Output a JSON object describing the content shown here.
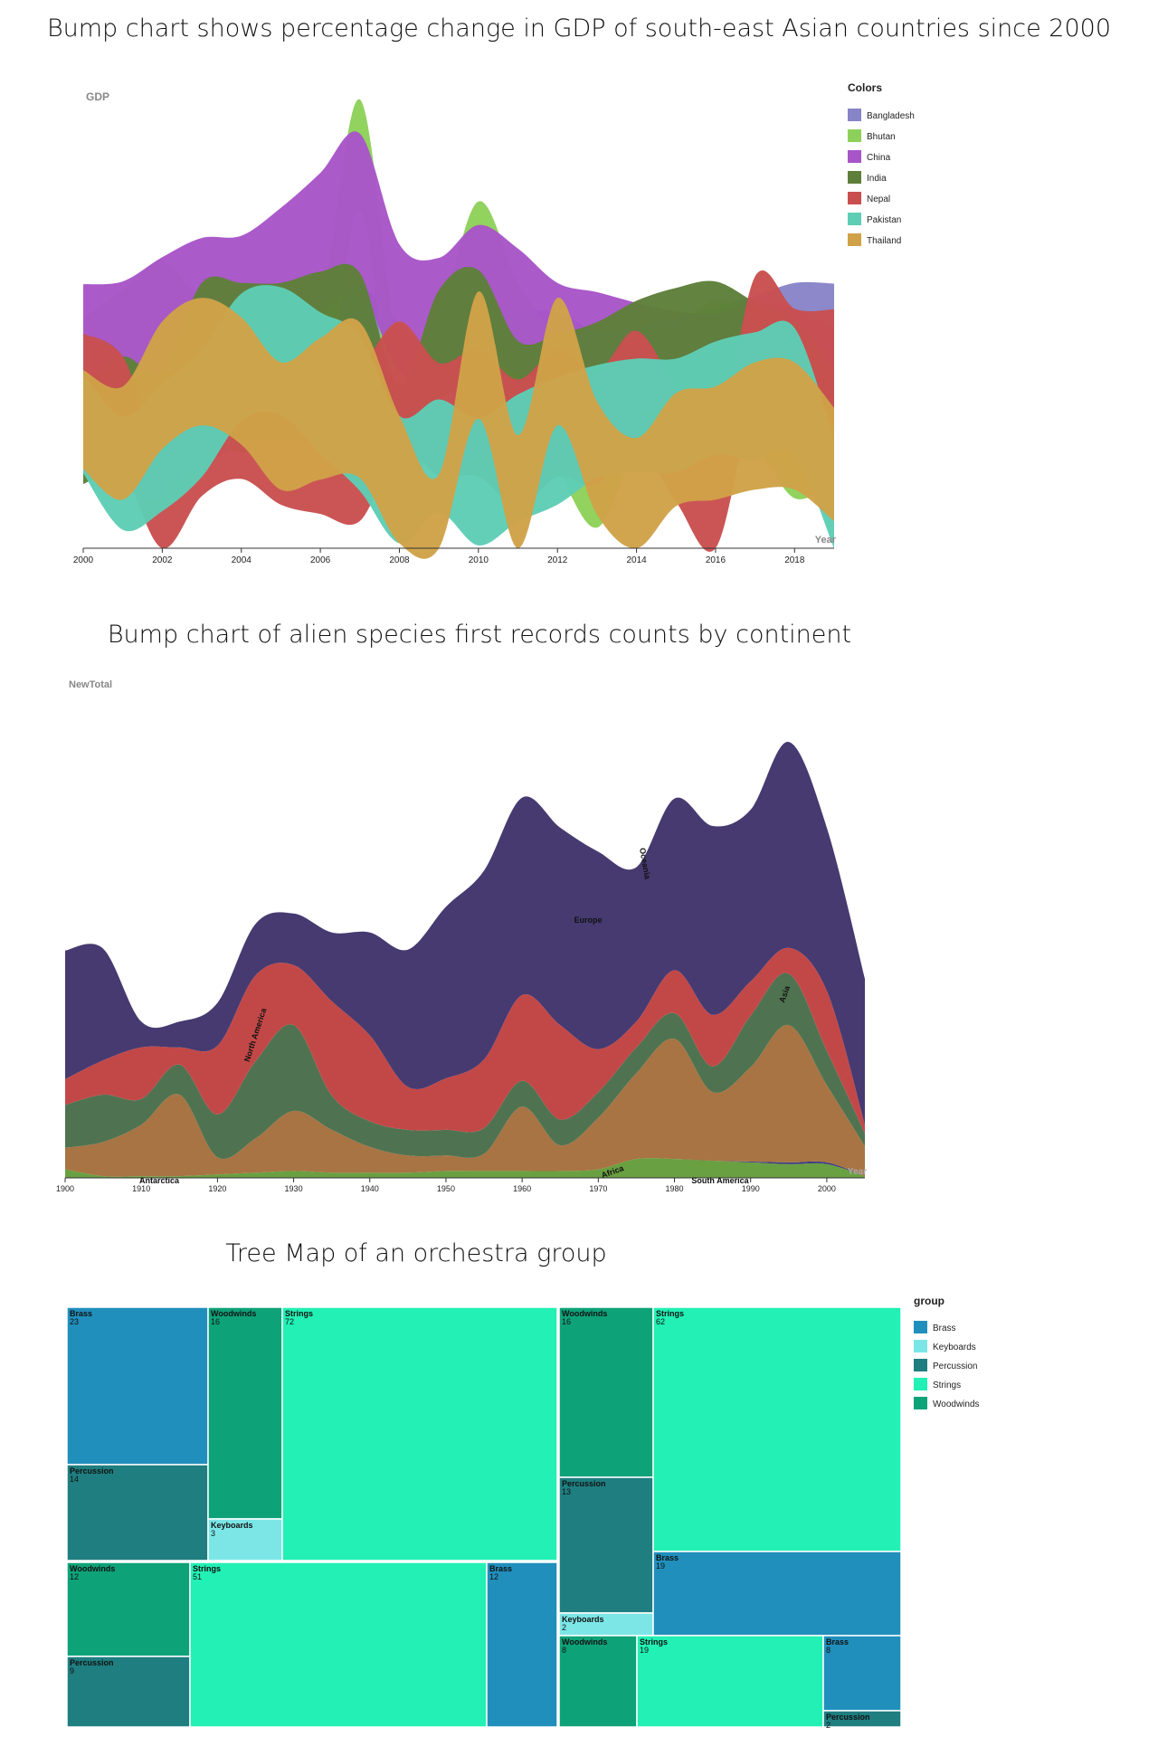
{
  "chart_data": [
    {
      "type": "area",
      "title": "Bump chart shows percentage change in GDP of south-east Asian countries since 2000",
      "ylabel": "GDP",
      "xlabel": "Year",
      "xlim": [
        2000,
        2019
      ],
      "x_ticks": [
        "2000",
        "2002",
        "2004",
        "2006",
        "2008",
        "2010",
        "2012",
        "2014",
        "2016",
        "2018"
      ],
      "legend_title": "Colors",
      "legend_position": "top-right",
      "grid": false,
      "x": [
        2000,
        2001,
        2002,
        2003,
        2004,
        2005,
        2006,
        2007,
        2008,
        2009,
        2010,
        2011,
        2012,
        2013,
        2014,
        2015,
        2016,
        2017,
        2018,
        2019
      ],
      "series": [
        {
          "name": "Bangladesh",
          "color": "#8884c8",
          "values": [
            6.0,
            5.3,
            4.4,
            5.3,
            6.3,
            6.5,
            6.7,
            7.1,
            6.0,
            5.0,
            5.6,
            6.5,
            6.5,
            6.0,
            6.1,
            6.6,
            7.1,
            7.3,
            7.9,
            8.2
          ]
        },
        {
          "name": "Bhutan",
          "color": "#8ed15a",
          "values": [
            6.9,
            7.9,
            8.9,
            7.0,
            5.9,
            7.1,
            6.8,
            17.9,
            4.8,
            6.7,
            11.7,
            7.9,
            5.1,
            2.1,
            5.7,
            6.2,
            7.4,
            6.3,
            3.8,
            4.3
          ]
        },
        {
          "name": "China",
          "color": "#a855c8",
          "values": [
            8.5,
            8.3,
            9.1,
            10.0,
            10.1,
            11.4,
            12.7,
            14.2,
            9.7,
            9.4,
            10.6,
            9.5,
            7.9,
            7.8,
            7.3,
            6.9,
            6.8,
            6.9,
            6.7,
            6.1
          ]
        },
        {
          "name": "India",
          "color": "#5e7f3a",
          "values": [
            3.8,
            4.8,
            3.8,
            7.9,
            7.9,
            7.9,
            8.1,
            7.7,
            3.1,
            7.9,
            8.5,
            5.2,
            5.5,
            6.4,
            7.4,
            8.0,
            8.3,
            7.0,
            6.1,
            4.2
          ]
        },
        {
          "name": "Nepal",
          "color": "#c94f4f",
          "values": [
            6.2,
            4.8,
            0.1,
            3.9,
            4.7,
            3.5,
            3.4,
            3.4,
            6.1,
            4.5,
            4.8,
            3.4,
            4.8,
            4.1,
            6.0,
            3.3,
            0.6,
            8.2,
            6.7,
            7.0
          ]
        },
        {
          "name": "Pakistan",
          "color": "#5ecdb5",
          "values": [
            4.3,
            2.0,
            3.2,
            4.8,
            7.4,
            7.7,
            6.2,
            4.8,
            1.7,
            2.8,
            1.6,
            2.7,
            3.5,
            4.4,
            4.7,
            4.7,
            5.5,
            5.6,
            5.8,
            1.0
          ]
        },
        {
          "name": "Thailand",
          "color": "#cfa248",
          "values": [
            4.5,
            3.4,
            6.1,
            7.2,
            6.3,
            4.2,
            5.0,
            5.4,
            1.7,
            -0.7,
            7.5,
            0.8,
            7.2,
            2.7,
            1.0,
            3.1,
            3.4,
            4.2,
            4.2,
            2.4
          ]
        }
      ]
    },
    {
      "type": "area",
      "title": "Bump chart of alien species first records counts by continent",
      "ylabel": "NewTotal",
      "xlabel": "Year",
      "xlim": [
        1900,
        2005
      ],
      "x_ticks": [
        "1900",
        "1910",
        "1920",
        "1930",
        "1940",
        "1950",
        "1960",
        "1970",
        "1980",
        "1990",
        "2000"
      ],
      "grid": false,
      "x": [
        1900,
        1905,
        1910,
        1915,
        1920,
        1925,
        1930,
        1935,
        1940,
        1945,
        1950,
        1955,
        1960,
        1965,
        1970,
        1975,
        1980,
        1985,
        1990,
        1995,
        2000,
        2005
      ],
      "series": [
        {
          "name": "Africa",
          "color": "#69a041",
          "values": [
            10,
            2,
            2,
            2,
            4,
            6,
            8,
            6,
            6,
            6,
            8,
            8,
            8,
            8,
            10,
            22,
            22,
            20,
            18,
            16,
            16,
            2
          ]
        },
        {
          "name": "Antarctica",
          "color": "#3b3b80",
          "values": [
            0,
            0,
            0,
            0,
            0,
            0,
            0,
            0,
            0,
            0,
            0,
            0,
            0,
            0,
            0,
            0,
            0,
            0,
            0,
            0,
            0,
            0
          ]
        },
        {
          "name": "Asia",
          "color": "#a87444",
          "values": [
            25,
            40,
            60,
            95,
            20,
            40,
            70,
            50,
            30,
            20,
            18,
            20,
            75,
            30,
            60,
            100,
            140,
            80,
            110,
            160,
            90,
            35
          ]
        },
        {
          "name": "Europe",
          "color": "#463a70",
          "values": [
            150,
            130,
            30,
            30,
            50,
            60,
            60,
            80,
            120,
            160,
            200,
            220,
            230,
            230,
            230,
            180,
            200,
            220,
            200,
            240,
            190,
            170
          ]
        },
        {
          "name": "North America",
          "color": "#4f7350",
          "values": [
            50,
            55,
            30,
            35,
            50,
            90,
            100,
            40,
            30,
            30,
            30,
            30,
            30,
            30,
            30,
            30,
            30,
            30,
            60,
            60,
            40,
            15
          ]
        },
        {
          "name": "Oceania",
          "color": "#c24848",
          "values": [
            30,
            40,
            60,
            20,
            80,
            100,
            70,
            110,
            100,
            50,
            60,
            80,
            100,
            110,
            50,
            30,
            50,
            60,
            40,
            30,
            70,
            10
          ]
        },
        {
          "name": "South America",
          "color": "#3b3b80",
          "values": [
            0,
            0,
            0,
            0,
            0,
            0,
            0,
            0,
            0,
            0,
            0,
            0,
            0,
            0,
            0,
            0,
            0,
            0,
            1,
            2,
            2,
            0
          ]
        }
      ],
      "annotations": [
        "Europe",
        "Oceania",
        "Asia",
        "North America",
        "Africa",
        "Antarctica",
        "South America"
      ]
    },
    {
      "type": "treemap",
      "title": "Tree Map of an orchestra group",
      "legend_title": "group",
      "legend_position": "right",
      "legend": [
        {
          "name": "Brass",
          "color": "#218fbc"
        },
        {
          "name": "Keyboards",
          "color": "#7ce6e7"
        },
        {
          "name": "Percussion",
          "color": "#1f7e80"
        },
        {
          "name": "Strings",
          "color": "#22f0b4"
        },
        {
          "name": "Woodwinds",
          "color": "#0ea278"
        }
      ],
      "cells": [
        {
          "name": "Brass",
          "value": "23",
          "group": "Brass"
        },
        {
          "name": "Percussion",
          "value": "14",
          "group": "Percussion"
        },
        {
          "name": "Woodwinds",
          "value": "16",
          "group": "Woodwinds"
        },
        {
          "name": "Keyboards",
          "value": "3",
          "group": "Keyboards"
        },
        {
          "name": "Strings",
          "value": "72",
          "group": "Strings"
        },
        {
          "name": "Woodwinds",
          "value": "12",
          "group": "Woodwinds"
        },
        {
          "name": "Percussion",
          "value": "9",
          "group": "Percussion"
        },
        {
          "name": "Strings",
          "value": "51",
          "group": "Strings"
        },
        {
          "name": "Brass",
          "value": "12",
          "group": "Brass"
        },
        {
          "name": "Woodwinds",
          "value": "16",
          "group": "Woodwinds"
        },
        {
          "name": "Percussion",
          "value": "13",
          "group": "Percussion"
        },
        {
          "name": "Keyboards",
          "value": "2",
          "group": "Keyboards"
        },
        {
          "name": "Strings",
          "value": "62",
          "group": "Strings"
        },
        {
          "name": "Brass",
          "value": "19",
          "group": "Brass"
        },
        {
          "name": "Woodwinds",
          "value": "8",
          "group": "Woodwinds"
        },
        {
          "name": "Strings",
          "value": "19",
          "group": "Strings"
        },
        {
          "name": "Brass",
          "value": "8",
          "group": "Brass"
        },
        {
          "name": "Percussion",
          "value": "2",
          "group": "Percussion"
        }
      ]
    }
  ]
}
